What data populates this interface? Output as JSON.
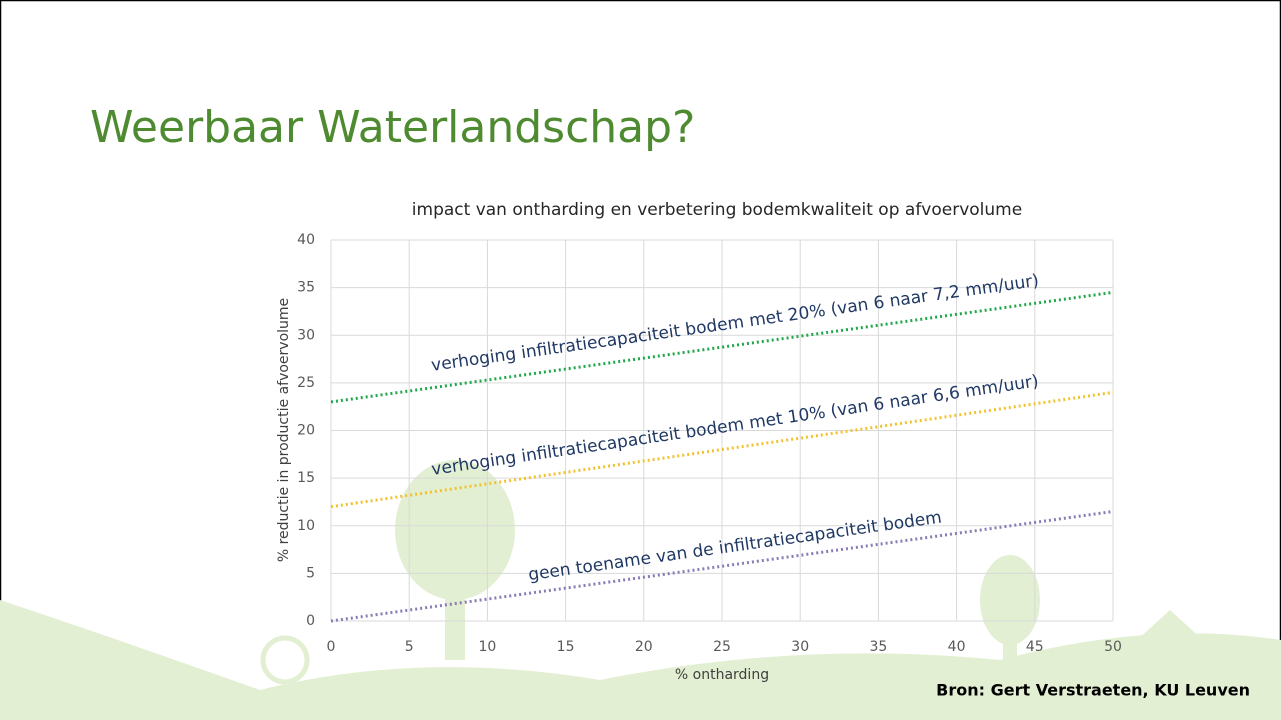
{
  "title": "Weerbaar Waterlandschap?",
  "source": "Bron: Gert Verstraeten, KU Leuven",
  "chart_data": {
    "type": "line",
    "title": "impact van ontharding en verbetering bodemkwaliteit op afvoervolume",
    "x_label": "% ontharding",
    "y_label": "% reductie in productie afvoervolume",
    "x": [
      0,
      50
    ],
    "xlim": [
      0,
      50
    ],
    "xticks": [
      0,
      5,
      10,
      15,
      20,
      25,
      30,
      35,
      40,
      45,
      50
    ],
    "ylim": [
      0,
      40
    ],
    "yticks": [
      0,
      5,
      10,
      15,
      20,
      25,
      30,
      35,
      40
    ],
    "grid": true,
    "series": [
      {
        "name": "verhoging infiltratiecapaciteit bodem met 20% (van 6 naar 7,2 mm/uur)",
        "color": "#1fa84a",
        "values": [
          23,
          34.5
        ]
      },
      {
        "name": "verhoging infiltratiecapaciteit bodem met 10% (van 6 naar 6,6 mm/uur)",
        "color": "#f2c12e",
        "values": [
          12,
          24
        ]
      },
      {
        "name": "geen toename van de infiltratiecapaciteit bodem",
        "color": "#8a7bb5",
        "values": [
          0,
          11.5
        ]
      }
    ]
  }
}
